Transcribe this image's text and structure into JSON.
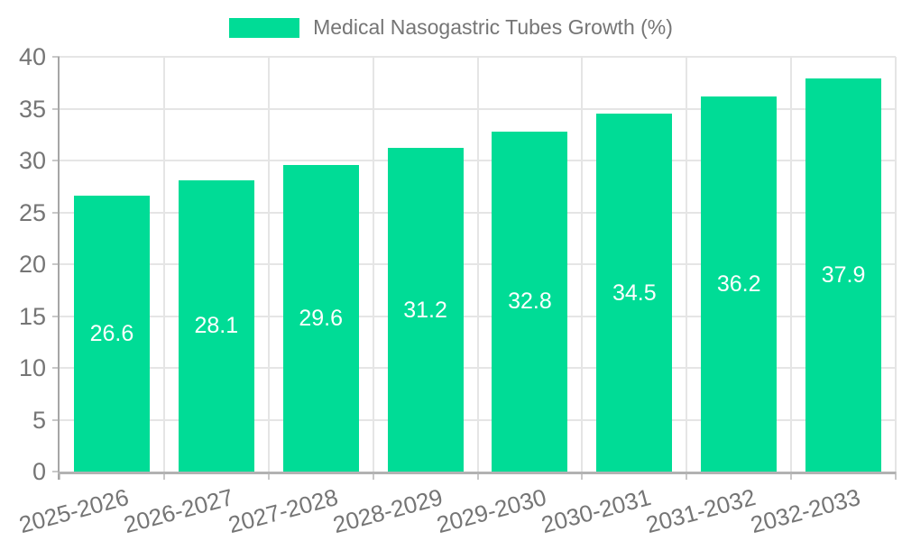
{
  "chart_data": {
    "type": "bar",
    "title": "Medical Nasogastric Tubes Growth (%)",
    "legend": [
      "Medical Nasogastric Tubes Growth (%)"
    ],
    "legend_position": "top",
    "categories": [
      "2025-2026",
      "2026-2027",
      "2027-2028",
      "2028-2029",
      "2029-2030",
      "2030-2031",
      "2031-2032",
      "2032-2033"
    ],
    "values": [
      26.6,
      28.1,
      29.6,
      31.2,
      32.8,
      34.5,
      36.2,
      37.9
    ],
    "value_labels": [
      "26.6",
      "28.1",
      "29.6",
      "31.2",
      "32.8",
      "34.5",
      "36.2",
      "37.9"
    ],
    "xlabel": "",
    "ylabel": "",
    "ylim": [
      0,
      40
    ],
    "yticks": [
      0,
      5,
      10,
      15,
      20,
      25,
      30,
      35,
      40
    ],
    "grid": true,
    "colors": {
      "bar": "#00DC96",
      "axis_text": "#757575",
      "value_label": "#ffffff",
      "grid_line": "#e5e5e5",
      "axis_line": "#a6a6a6",
      "tick": "#c8c8c8",
      "background": "#ffffff"
    }
  }
}
